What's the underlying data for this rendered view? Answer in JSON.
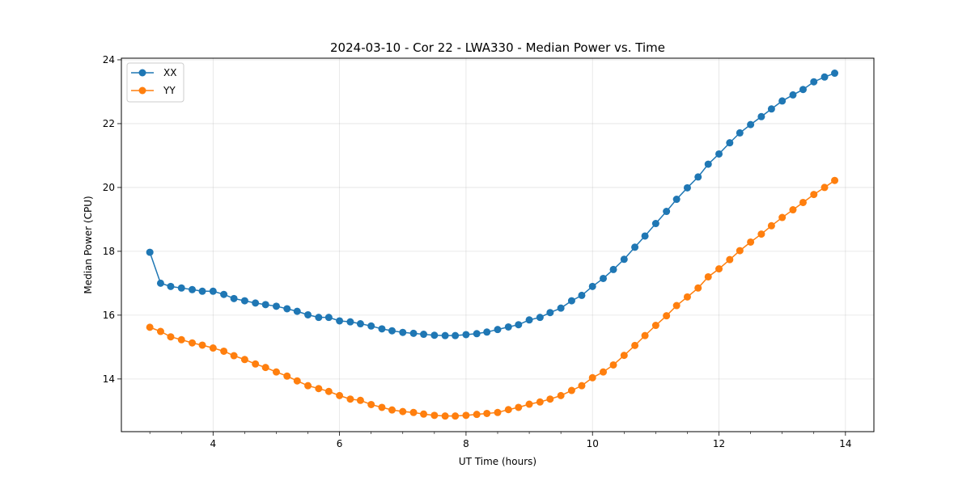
{
  "chart_data": {
    "type": "line",
    "title": "2024-03-10 - Cor 22 - LWA330 - Median Power vs. Time",
    "xlabel": "UT Time (hours)",
    "ylabel": "Median Power (CPU)",
    "xlim": [
      2.55,
      14.45
    ],
    "ylim": [
      12.35,
      24.05
    ],
    "xticks": [
      4,
      6,
      8,
      10,
      12,
      14
    ],
    "yticks": [
      14,
      16,
      18,
      20,
      22,
      24
    ],
    "grid": true,
    "legend_position": "upper-left",
    "x": [
      3.0,
      3.17,
      3.33,
      3.5,
      3.67,
      3.83,
      4.0,
      4.17,
      4.33,
      4.5,
      4.67,
      4.83,
      5.0,
      5.17,
      5.33,
      5.5,
      5.67,
      5.83,
      6.0,
      6.17,
      6.33,
      6.5,
      6.67,
      6.83,
      7.0,
      7.17,
      7.33,
      7.5,
      7.67,
      7.83,
      8.0,
      8.17,
      8.33,
      8.5,
      8.67,
      8.83,
      9.0,
      9.17,
      9.33,
      9.5,
      9.67,
      9.83,
      10.0,
      10.17,
      10.33,
      10.5,
      10.67,
      10.83,
      11.0,
      11.17,
      11.33,
      11.5,
      11.67,
      11.83,
      12.0,
      12.17,
      12.33,
      12.5,
      12.67,
      12.83,
      13.0,
      13.17,
      13.33,
      13.5,
      13.67,
      13.83
    ],
    "series": [
      {
        "name": "XX",
        "color": "#1f77b4",
        "values": [
          17.97,
          17.0,
          16.9,
          16.85,
          16.8,
          16.75,
          16.75,
          16.65,
          16.52,
          16.45,
          16.38,
          16.33,
          16.28,
          16.2,
          16.12,
          16.01,
          15.93,
          15.93,
          15.82,
          15.79,
          15.73,
          15.66,
          15.57,
          15.51,
          15.46,
          15.43,
          15.4,
          15.37,
          15.36,
          15.36,
          15.39,
          15.42,
          15.47,
          15.55,
          15.63,
          15.7,
          15.85,
          15.93,
          16.08,
          16.22,
          16.45,
          16.62,
          16.9,
          17.15,
          17.43,
          17.75,
          18.13,
          18.48,
          18.87,
          19.25,
          19.63,
          19.99,
          20.33,
          20.73,
          21.05,
          21.4,
          21.71,
          21.97,
          22.22,
          22.46,
          22.71,
          22.9,
          23.07,
          23.31,
          23.46,
          23.58
        ]
      },
      {
        "name": "YY",
        "color": "#ff7f0e",
        "values": [
          15.62,
          15.49,
          15.32,
          15.23,
          15.13,
          15.06,
          14.97,
          14.87,
          14.73,
          14.61,
          14.47,
          14.36,
          14.22,
          14.09,
          13.94,
          13.79,
          13.7,
          13.61,
          13.48,
          13.37,
          13.33,
          13.2,
          13.11,
          13.03,
          12.98,
          12.95,
          12.9,
          12.86,
          12.84,
          12.84,
          12.86,
          12.89,
          12.92,
          12.95,
          13.04,
          13.11,
          13.21,
          13.28,
          13.37,
          13.48,
          13.64,
          13.79,
          14.04,
          14.22,
          14.44,
          14.74,
          15.05,
          15.36,
          15.68,
          15.98,
          16.3,
          16.57,
          16.85,
          17.2,
          17.45,
          17.74,
          18.02,
          18.29,
          18.54,
          18.8,
          19.06,
          19.3,
          19.53,
          19.78,
          20.0,
          20.22
        ]
      }
    ]
  }
}
